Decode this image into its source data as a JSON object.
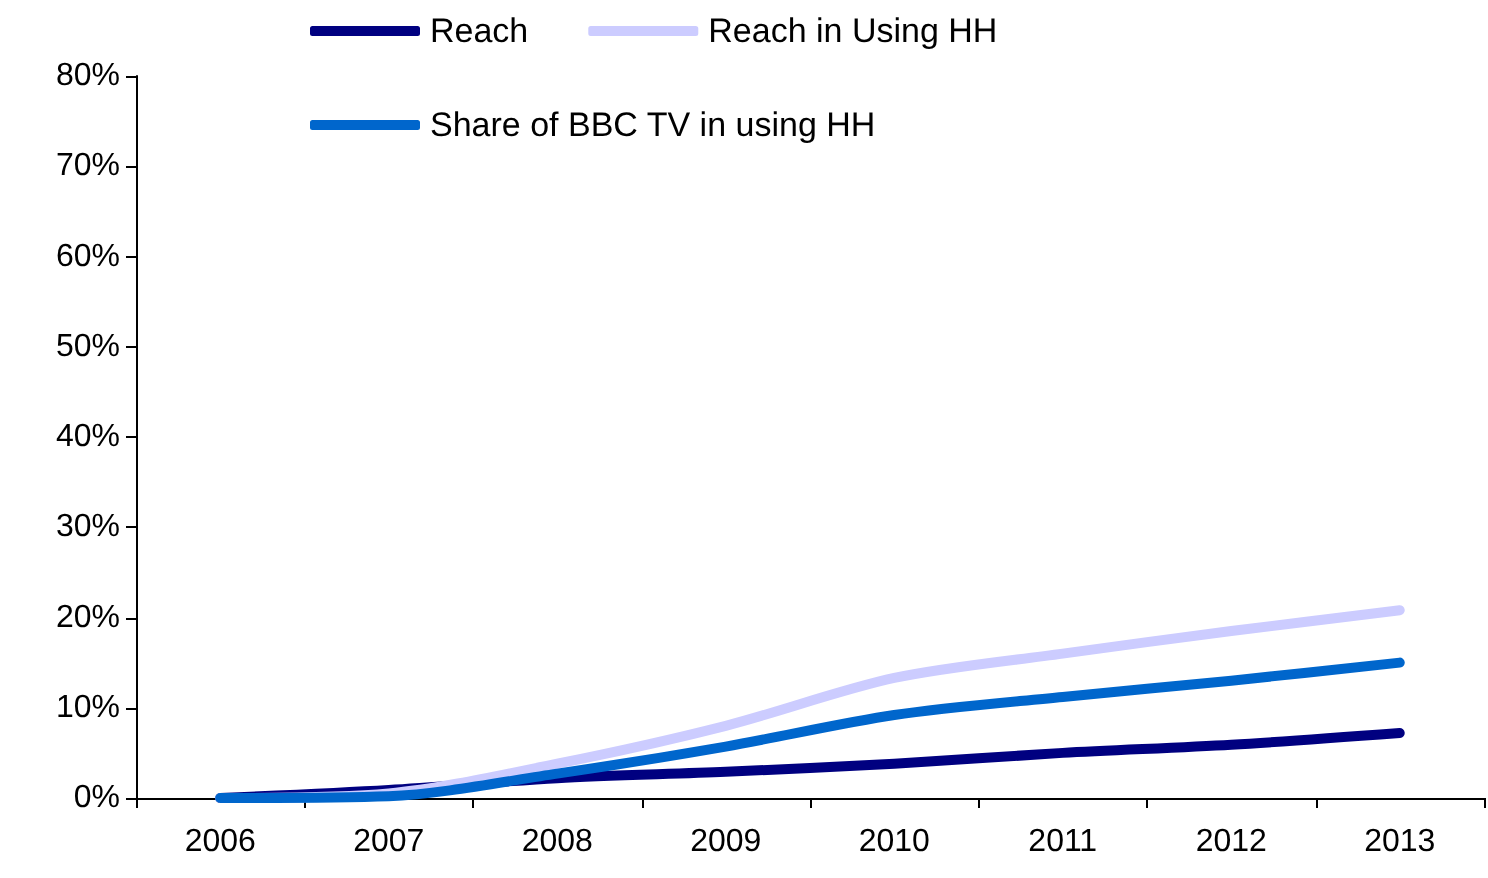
{
  "chart_data": {
    "type": "line",
    "categories": [
      "2006",
      "2007",
      "2008",
      "2009",
      "2010",
      "2011",
      "2012",
      "2013"
    ],
    "series": [
      {
        "name": "Reach",
        "color": "#000080",
        "values": [
          0,
          0.9,
          2.2,
          2.9,
          3.8,
          5,
          5.9,
          7.2
        ]
      },
      {
        "name": "Reach in Using HH",
        "color": "#ccccff",
        "values": [
          0,
          0.5,
          3.8,
          8,
          13.3,
          16,
          18.5,
          20.8
        ]
      },
      {
        "name": "Share of BBC TV in using HH",
        "color": "#0066cc",
        "values": [
          0,
          0.2,
          2.7,
          5.7,
          9.2,
          11.2,
          13,
          15
        ]
      }
    ],
    "ylim": [
      0,
      80
    ],
    "yticks": [
      {
        "value": 0,
        "label": "0%"
      },
      {
        "value": 10,
        "label": "10%"
      },
      {
        "value": 20,
        "label": "20%"
      },
      {
        "value": 30,
        "label": "30%"
      },
      {
        "value": 40,
        "label": "40%"
      },
      {
        "value": 50,
        "label": "50%"
      },
      {
        "value": 60,
        "label": "60%"
      },
      {
        "value": 70,
        "label": "70%"
      },
      {
        "value": 80,
        "label": "80%"
      }
    ],
    "grid": false,
    "legend": "top",
    "marker": "none",
    "line_style": "solid"
  }
}
